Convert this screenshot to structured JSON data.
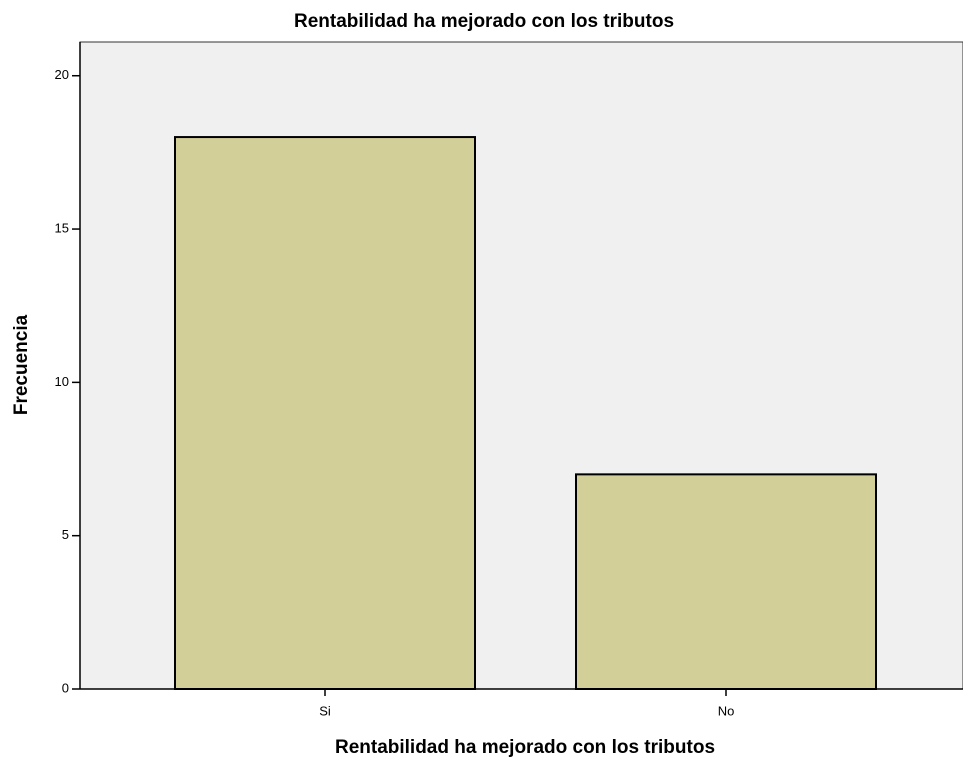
{
  "chart_data": {
    "type": "bar",
    "title": "Rentabilidad ha mejorado con los tributos",
    "x_label": "Rentabilidad ha mejorado con los tributos",
    "y_label": "Frecuencia",
    "categories": [
      "Si",
      "No"
    ],
    "values": [
      18,
      7
    ],
    "color": "#d3cf98",
    "ylim": [
      0,
      21.1
    ],
    "yticks": [
      0,
      5,
      10,
      15,
      20
    ],
    "grid": false
  }
}
